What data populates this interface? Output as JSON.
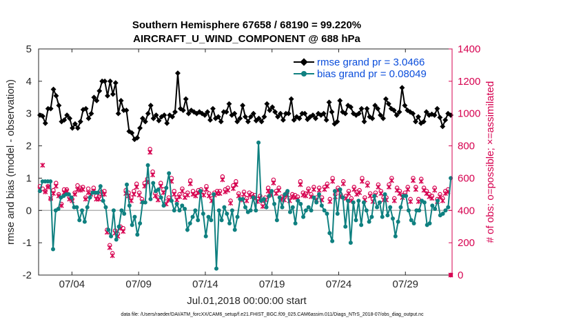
{
  "chart_data": {
    "type": "line",
    "title": "Southern Hemisphere 67658 / 68190 = 99.220%",
    "subtitle": "AIRCRAFT_U_WIND_COMPONENT @ 688 hPa",
    "xlabel": "Jul.01,2018 00:00:00 start",
    "ylabel_left": "rmse and bias (model - observation)",
    "ylabel_right": "# of obs: o=possible; ×=assimilated",
    "footer": "data file: /Users/raeder/DAI/ATM_forcXX/CAM6_setup/f.e21.FHIST_BGC.f09_025.CAM6assim.011/Diags_NTrS_2018-07/obs_diag_output.nc",
    "xlim": [
      1,
      32
    ],
    "ylim_left": [
      -2,
      5
    ],
    "ylim_right": [
      0,
      1400
    ],
    "x_ticks": [
      3.5,
      8.5,
      13.5,
      18.5,
      23.5,
      28.5
    ],
    "x_tick_labels": [
      "07/04",
      "07/09",
      "07/14",
      "07/19",
      "07/24",
      "07/29"
    ],
    "y_ticks_left": [
      "-2",
      "-1",
      "0",
      "1",
      "2",
      "3",
      "4",
      "5"
    ],
    "y_ticks_right": [
      "0",
      "200",
      "400",
      "600",
      "800",
      "1000",
      "1200",
      "1400"
    ],
    "legend_position": "top-right",
    "colors": {
      "rmse": "#000000",
      "bias": "#0f8080",
      "obs": "#d6004f",
      "legend_text": "#0a4ddb",
      "zero_line": "#b3b3b3"
    },
    "series": [
      {
        "name": "rmse grand pr = 3.0466",
        "axis": "left",
        "style": "line-diamond",
        "values": [
          2.95,
          2.92,
          2.7,
          3.15,
          3.15,
          3.75,
          3.55,
          3.25,
          2.75,
          2.8,
          2.95,
          2.85,
          2.55,
          2.68,
          2.55,
          2.75,
          3.12,
          3.15,
          2.85,
          3.0,
          3.5,
          3.4,
          3.7,
          4.0,
          4.0,
          3.55,
          4.0,
          3.6,
          3.95,
          3.0,
          3.4,
          3.1,
          3.1,
          2.45,
          2.4,
          2.2,
          2.25,
          2.55,
          2.85,
          2.75,
          3.0,
          3.25,
          2.85,
          2.95,
          2.78,
          2.9,
          2.95,
          2.7,
          2.95,
          2.9,
          3.05,
          4.25,
          3.15,
          3.1,
          3.45,
          3.0,
          3.1,
          3.05,
          3.0,
          3.05,
          3.0,
          2.95,
          3.05,
          2.8,
          3.15,
          2.85,
          2.9,
          2.75,
          3.05,
          3.05,
          3.3,
          2.95,
          3.0,
          2.75,
          2.85,
          3.25,
          2.9,
          2.75,
          2.9,
          3.0,
          2.78,
          2.85,
          2.75,
          2.9,
          3.3,
          3.1,
          3.2,
          3.05,
          2.9,
          3.0,
          2.8,
          3.0,
          3.0,
          3.45,
          2.8,
          2.9,
          2.85,
          3.0,
          3.0,
          2.82,
          2.9,
          2.95,
          2.85,
          3.0,
          2.95,
          3.0,
          2.8,
          3.35,
          3.05,
          2.68,
          2.75,
          3.4,
          3.05,
          3.0,
          3.25,
          3.2,
          3.0,
          2.95,
          3.0,
          3.15,
          2.75,
          3.15,
          2.9,
          2.85,
          3.25,
          3.15,
          2.95,
          2.85,
          3.45,
          3.3,
          3.15,
          3.1,
          2.95,
          3.05,
          3.8,
          3.25,
          3.1,
          3.05,
          3.0,
          2.75,
          2.9,
          2.7,
          2.75,
          3.05,
          2.95,
          2.98,
          2.95,
          3.15,
          2.88,
          2.6,
          2.8,
          3.0,
          2.95
        ]
      },
      {
        "name": "bias grand pr = 0.08049",
        "axis": "left",
        "style": "line-circle",
        "values": [
          0.6,
          0.9,
          0.9,
          0.9,
          0.9,
          -1.2,
          0.0,
          0.05,
          0.4,
          0.45,
          0.5,
          0.5,
          0.4,
          0.1,
          0.1,
          -0.3,
          0.0,
          -0.35,
          0.1,
          0.4,
          0.55,
          0.55,
          0.55,
          0.75,
          0.3,
          0.1,
          -0.6,
          -0.8,
          0.0,
          -0.9,
          -0.5,
          0.0,
          -0.1,
          0.8,
          0.15,
          -0.45,
          -0.2,
          -0.75,
          -0.4,
          0.25,
          0.25,
          1.4,
          0.35,
          0.85,
          0.6,
          0.65,
          0.4,
          0.15,
          0.7,
          1.15,
          0.3,
          0.0,
          0.2,
          0.0,
          0.15,
          0.05,
          -0.6,
          -0.4,
          -0.2,
          0.0,
          -0.3,
          0.6,
          -0.1,
          -0.8,
          -0.2,
          -0.3,
          0.5,
          -1.8,
          0.0,
          -0.3,
          0.1,
          -0.1,
          -0.4,
          0.0,
          -0.6,
          -0.2,
          0.35,
          0.35,
          0.1,
          -0.05,
          0.0,
          0.4,
          0.0,
          2.1,
          0.3,
          0.35,
          0.1,
          0.45,
          0.6,
          0.2,
          -0.3,
          0.4,
          0.1,
          0.5,
          0.6,
          -0.05,
          0.1,
          -0.4,
          0.3,
          0.2,
          -0.2,
          0.0,
          0.1,
          0.0,
          0.4,
          0.25,
          0.5,
          0.15,
          0.0,
          -0.1,
          -0.7,
          -0.95,
          0.6,
          -0.1,
          0.65,
          0.4,
          -0.5,
          0.3,
          -1.0,
          0.25,
          -0.3,
          0.3,
          -0.45,
          0.25,
          0.0,
          -0.35,
          -0.2,
          0.45,
          0.1,
          0.25,
          -0.2,
          0.5,
          -0.15,
          0.1,
          -0.25,
          -0.8,
          -0.35,
          0.1,
          0.45,
          0.45,
          0.0,
          -0.3,
          -0.4,
          0.0,
          0.0,
          0.3,
          0.25,
          -0.45,
          -0.4,
          0.15,
          0.05,
          0.3,
          -0.15,
          -0.1,
          0.0,
          0.1,
          1.0
        ]
      },
      {
        "name": "possible obs",
        "axis": "right",
        "style": "circle",
        "values": [
          550,
          535,
          520,
          550,
          470,
          525,
          570,
          500,
          440,
          530,
          530,
          480,
          470,
          510,
          555,
          540,
          545,
          480,
          535,
          510,
          540,
          490,
          485,
          515,
          520,
          280,
          185,
          135,
          275,
          255,
          300,
          290,
          525,
          510,
          480,
          520,
          565,
          510,
          470,
          570,
          595,
          780,
          640,
          505,
          480,
          570,
          530,
          455,
          480,
          600,
          520,
          480,
          500,
          535,
          495,
          510,
          585,
          520,
          505,
          525,
          530,
          510,
          550,
          505,
          475,
          510,
          520,
          520,
          610,
          530,
          540,
          460,
          555,
          580,
          505,
          480,
          515,
          475,
          510,
          500,
          495,
          470,
          490,
          440,
          480,
          540,
          510,
          590,
          520,
          540,
          485,
          480,
          510,
          475,
          500,
          495,
          485,
          580,
          510,
          505,
          535,
          500,
          545,
          480,
          540,
          480,
          545,
          565,
          470,
          600,
          500,
          540,
          500,
          580,
          490,
          520,
          475,
          545,
          515,
          525,
          600,
          480,
          570,
          505,
          470,
          510,
          560,
          520,
          480,
          480,
          560,
          600,
          475,
          540,
          520,
          495,
          510,
          545,
          470,
          600,
          545,
          470,
          595,
          540,
          520,
          500,
          490,
          540,
          470,
          500,
          475,
          520,
          530,
          0
        ]
      },
      {
        "name": "assimilated obs",
        "axis": "right",
        "style": "x",
        "values": [
          530,
          680,
          515,
          545,
          475,
          505,
          550,
          490,
          430,
          510,
          520,
          470,
          460,
          500,
          530,
          525,
          530,
          470,
          510,
          500,
          520,
          470,
          470,
          500,
          500,
          265,
          170,
          120,
          260,
          240,
          290,
          270,
          505,
          490,
          460,
          500,
          545,
          495,
          455,
          550,
          575,
          760,
          620,
          490,
          465,
          550,
          510,
          440,
          465,
          580,
          500,
          465,
          485,
          520,
          480,
          495,
          565,
          500,
          490,
          510,
          515,
          495,
          530,
          490,
          460,
          495,
          505,
          505,
          590,
          515,
          525,
          445,
          535,
          560,
          490,
          465,
          500,
          460,
          495,
          485,
          480,
          455,
          475,
          425,
          465,
          520,
          495,
          570,
          505,
          525,
          470,
          465,
          495,
          460,
          485,
          480,
          470,
          560,
          495,
          490,
          520,
          485,
          530,
          465,
          525,
          465,
          530,
          550,
          455,
          580,
          485,
          525,
          485,
          565,
          475,
          505,
          460,
          530,
          500,
          510,
          580,
          465,
          555,
          490,
          455,
          495,
          545,
          505,
          465,
          465,
          545,
          585,
          460,
          525,
          505,
          480,
          495,
          530,
          455,
          585,
          530,
          455,
          580,
          525,
          505,
          485,
          475,
          525,
          455,
          485,
          460,
          505,
          515,
          0
        ]
      }
    ],
    "rmse_label": "rmse grand pr = 3.0466",
    "bias_label": "bias grand pr = 0.08049"
  }
}
